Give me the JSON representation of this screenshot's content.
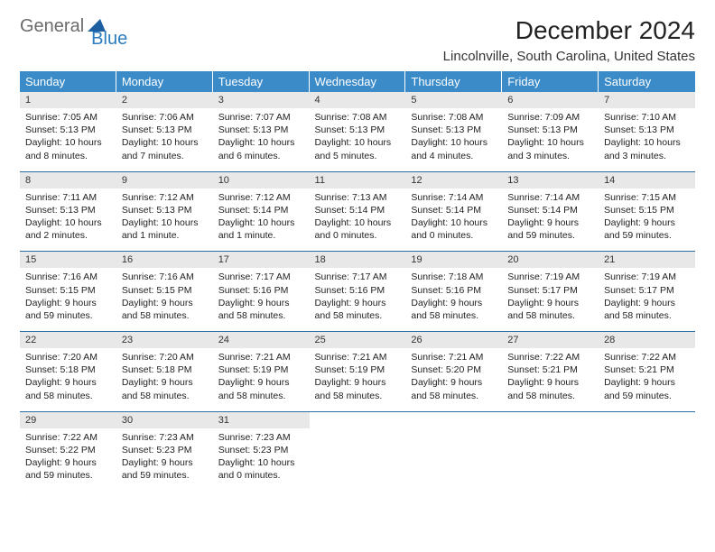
{
  "logo": {
    "word1": "General",
    "word2": "Blue"
  },
  "title": "December 2024",
  "subtitle": "Lincolnville, South Carolina, United States",
  "colors": {
    "header_bg": "#3b8bc9",
    "daynum_bg": "#e8e8e8",
    "row_border": "#2a6fa8",
    "logo_gray": "#6b6b6b",
    "logo_blue": "#2a7bbf"
  },
  "day_headers": [
    "Sunday",
    "Monday",
    "Tuesday",
    "Wednesday",
    "Thursday",
    "Friday",
    "Saturday"
  ],
  "weeks": [
    [
      {
        "n": "1",
        "sr": "7:05 AM",
        "ss": "5:13 PM",
        "dl": "10 hours and 8 minutes."
      },
      {
        "n": "2",
        "sr": "7:06 AM",
        "ss": "5:13 PM",
        "dl": "10 hours and 7 minutes."
      },
      {
        "n": "3",
        "sr": "7:07 AM",
        "ss": "5:13 PM",
        "dl": "10 hours and 6 minutes."
      },
      {
        "n": "4",
        "sr": "7:08 AM",
        "ss": "5:13 PM",
        "dl": "10 hours and 5 minutes."
      },
      {
        "n": "5",
        "sr": "7:08 AM",
        "ss": "5:13 PM",
        "dl": "10 hours and 4 minutes."
      },
      {
        "n": "6",
        "sr": "7:09 AM",
        "ss": "5:13 PM",
        "dl": "10 hours and 3 minutes."
      },
      {
        "n": "7",
        "sr": "7:10 AM",
        "ss": "5:13 PM",
        "dl": "10 hours and 3 minutes."
      }
    ],
    [
      {
        "n": "8",
        "sr": "7:11 AM",
        "ss": "5:13 PM",
        "dl": "10 hours and 2 minutes."
      },
      {
        "n": "9",
        "sr": "7:12 AM",
        "ss": "5:13 PM",
        "dl": "10 hours and 1 minute."
      },
      {
        "n": "10",
        "sr": "7:12 AM",
        "ss": "5:14 PM",
        "dl": "10 hours and 1 minute."
      },
      {
        "n": "11",
        "sr": "7:13 AM",
        "ss": "5:14 PM",
        "dl": "10 hours and 0 minutes."
      },
      {
        "n": "12",
        "sr": "7:14 AM",
        "ss": "5:14 PM",
        "dl": "10 hours and 0 minutes."
      },
      {
        "n": "13",
        "sr": "7:14 AM",
        "ss": "5:14 PM",
        "dl": "9 hours and 59 minutes."
      },
      {
        "n": "14",
        "sr": "7:15 AM",
        "ss": "5:15 PM",
        "dl": "9 hours and 59 minutes."
      }
    ],
    [
      {
        "n": "15",
        "sr": "7:16 AM",
        "ss": "5:15 PM",
        "dl": "9 hours and 59 minutes."
      },
      {
        "n": "16",
        "sr": "7:16 AM",
        "ss": "5:15 PM",
        "dl": "9 hours and 58 minutes."
      },
      {
        "n": "17",
        "sr": "7:17 AM",
        "ss": "5:16 PM",
        "dl": "9 hours and 58 minutes."
      },
      {
        "n": "18",
        "sr": "7:17 AM",
        "ss": "5:16 PM",
        "dl": "9 hours and 58 minutes."
      },
      {
        "n": "19",
        "sr": "7:18 AM",
        "ss": "5:16 PM",
        "dl": "9 hours and 58 minutes."
      },
      {
        "n": "20",
        "sr": "7:19 AM",
        "ss": "5:17 PM",
        "dl": "9 hours and 58 minutes."
      },
      {
        "n": "21",
        "sr": "7:19 AM",
        "ss": "5:17 PM",
        "dl": "9 hours and 58 minutes."
      }
    ],
    [
      {
        "n": "22",
        "sr": "7:20 AM",
        "ss": "5:18 PM",
        "dl": "9 hours and 58 minutes."
      },
      {
        "n": "23",
        "sr": "7:20 AM",
        "ss": "5:18 PM",
        "dl": "9 hours and 58 minutes."
      },
      {
        "n": "24",
        "sr": "7:21 AM",
        "ss": "5:19 PM",
        "dl": "9 hours and 58 minutes."
      },
      {
        "n": "25",
        "sr": "7:21 AM",
        "ss": "5:19 PM",
        "dl": "9 hours and 58 minutes."
      },
      {
        "n": "26",
        "sr": "7:21 AM",
        "ss": "5:20 PM",
        "dl": "9 hours and 58 minutes."
      },
      {
        "n": "27",
        "sr": "7:22 AM",
        "ss": "5:21 PM",
        "dl": "9 hours and 58 minutes."
      },
      {
        "n": "28",
        "sr": "7:22 AM",
        "ss": "5:21 PM",
        "dl": "9 hours and 59 minutes."
      }
    ],
    [
      {
        "n": "29",
        "sr": "7:22 AM",
        "ss": "5:22 PM",
        "dl": "9 hours and 59 minutes."
      },
      {
        "n": "30",
        "sr": "7:23 AM",
        "ss": "5:23 PM",
        "dl": "9 hours and 59 minutes."
      },
      {
        "n": "31",
        "sr": "7:23 AM",
        "ss": "5:23 PM",
        "dl": "10 hours and 0 minutes."
      },
      null,
      null,
      null,
      null
    ]
  ],
  "labels": {
    "sunrise": "Sunrise:",
    "sunset": "Sunset:",
    "daylight": "Daylight:"
  }
}
